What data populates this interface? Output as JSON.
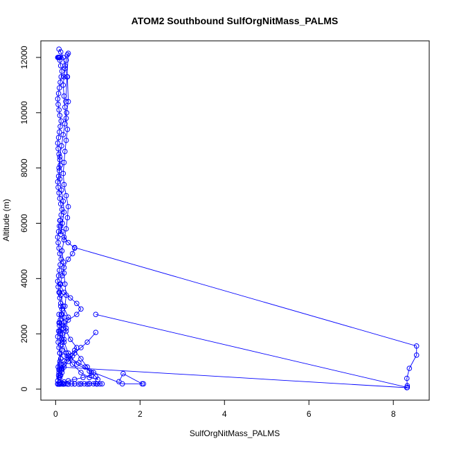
{
  "chart_data": {
    "type": "line",
    "title": "ATOM2 Southbound SulfOrgNitMass_PALMS",
    "xlabel": "SulfOrgNitMass_PALMS",
    "ylabel": "Altitude (m)",
    "xlim": [
      -0.35,
      8.85
    ],
    "ylim": [
      -400,
      12600
    ],
    "x_ticks": [
      0,
      2,
      4,
      6,
      8
    ],
    "y_ticks": [
      0,
      2000,
      4000,
      6000,
      8000,
      10000,
      12000
    ],
    "x_tick_labels": [
      "0",
      "2",
      "4",
      "6",
      "8"
    ],
    "y_tick_labels": [
      "0",
      "2000",
      "4000",
      "6000",
      "8000",
      "10000",
      "12000"
    ],
    "grid": false,
    "color": "#0000ff",
    "marker": "open-circle",
    "series": [
      {
        "x": [
          0.05,
          0.08,
          0.1,
          0.12,
          0.15,
          0.18,
          0.2,
          0.25,
          0.3,
          0.38,
          0.45,
          0.55,
          0.6,
          0.68,
          0.75,
          0.8,
          0.9,
          0.98,
          1.05,
          1.1,
          0.95,
          0.8,
          0.6,
          0.45,
          0.3,
          0.2,
          0.12,
          0.08
        ],
        "y": [
          180,
          180,
          180,
          185,
          190,
          180,
          185,
          190,
          180,
          185,
          190,
          180,
          185,
          190,
          180,
          185,
          190,
          180,
          185,
          190,
          200,
          195,
          190,
          185,
          180,
          185,
          190,
          180
        ]
      },
      {
        "x": [
          1.5,
          1.6,
          2.05,
          2.08,
          1.58,
          0.9,
          0.5,
          0.3,
          0.2,
          0.15,
          0.1,
          0.08
        ],
        "y": [
          270,
          560,
          190,
          190,
          190,
          600,
          900,
          1300,
          1700,
          2000,
          2400,
          2700
        ]
      },
      {
        "x": [
          0.1,
          0.12,
          0.15,
          0.2,
          0.3,
          0.45,
          0.6,
          0.75,
          0.85,
          0.95,
          1.0,
          0.8,
          0.6,
          0.4,
          0.25,
          0.15,
          0.1
        ],
        "y": [
          250,
          500,
          750,
          1000,
          1200,
          1400,
          1100,
          800,
          600,
          450,
          350,
          420,
          600,
          900,
          1300,
          1700,
          2100
        ]
      },
      {
        "x": [
          0.08,
          0.1,
          0.15,
          0.2,
          0.25,
          0.3,
          0.18,
          0.12,
          0.1,
          0.2,
          0.35,
          0.5,
          0.6,
          0.5,
          0.3,
          0.18,
          0.1
        ],
        "y": [
          700,
          1000,
          1400,
          1800,
          2200,
          2600,
          3000,
          3400,
          3800,
          3500,
          3300,
          3100,
          2900,
          2700,
          2500,
          2300,
          2100
        ]
      },
      {
        "x": [
          0.95,
          0.75,
          0.6,
          0.45,
          0.3,
          0.2,
          0.15,
          0.1
        ],
        "y": [
          2050,
          1700,
          1500,
          1300,
          1100,
          900,
          700,
          500
        ]
      },
      {
        "x": [
          0.1,
          0.12,
          0.15,
          0.2,
          0.3,
          0.4,
          0.45,
          0.3,
          0.2,
          0.15,
          0.12,
          0.1
        ],
        "y": [
          3500,
          3800,
          4100,
          4400,
          4700,
          4900,
          5100,
          5300,
          5500,
          5700,
          5900,
          6100
        ]
      },
      {
        "x": [
          0.45,
          8.55,
          8.55,
          8.38,
          8.32,
          8.33,
          8.32,
          0.1,
          0.08
        ],
        "y": [
          5120,
          1560,
          1230,
          750,
          390,
          120,
          50,
          800,
          600
        ]
      },
      {
        "x": [
          0.95,
          8.33
        ],
        "y": [
          2700,
          60
        ]
      },
      {
        "x": [
          0.05,
          0.07,
          0.09,
          0.1,
          0.12,
          0.1,
          0.08,
          0.06,
          0.05,
          0.07,
          0.09,
          0.11,
          0.13,
          0.15,
          0.12,
          0.1,
          0.08,
          0.06,
          0.05,
          0.07,
          0.09,
          0.11,
          0.13,
          0.1,
          0.08,
          0.06,
          0.05,
          0.07,
          0.09,
          0.11,
          0.13,
          0.15,
          0.12,
          0.1,
          0.08,
          0.06,
          0.05,
          0.07,
          0.09,
          0.11,
          0.1,
          0.08,
          0.06,
          0.05,
          0.07,
          0.09,
          0.11,
          0.13,
          0.1,
          0.08,
          0.06,
          0.05,
          0.07,
          0.09,
          0.11,
          0.13,
          0.15,
          0.12,
          0.1,
          0.08,
          0.06,
          0.05,
          0.07,
          0.09,
          0.11
        ],
        "y": [
          300,
          500,
          700,
          900,
          1100,
          1300,
          1500,
          1700,
          1900,
          2100,
          2300,
          2500,
          2700,
          2900,
          3100,
          3300,
          3500,
          3700,
          3900,
          4100,
          4300,
          4500,
          4700,
          4900,
          5100,
          5300,
          5500,
          5700,
          5900,
          6100,
          6300,
          6500,
          6700,
          6900,
          7100,
          7300,
          7500,
          7700,
          7900,
          8100,
          8300,
          8500,
          8700,
          8900,
          9100,
          9300,
          9500,
          9700,
          9900,
          10100,
          10300,
          10500,
          10700,
          10900,
          11100,
          11300,
          11500,
          11700,
          11900,
          12000,
          12000,
          12000,
          12000,
          12000,
          12000
        ]
      },
      {
        "x": [
          0.15,
          0.18,
          0.2,
          0.22,
          0.25,
          0.22,
          0.2,
          0.18,
          0.15,
          0.2,
          0.25,
          0.28,
          0.3,
          0.25,
          0.2,
          0.18,
          0.2,
          0.22,
          0.25,
          0.28,
          0.25,
          0.22,
          0.2,
          0.18,
          0.2,
          0.22,
          0.25,
          0.28,
          0.3,
          0.27,
          0.24
        ],
        "y": [
          1800,
          2200,
          2600,
          3000,
          3400,
          3800,
          4200,
          4600,
          5000,
          5400,
          5800,
          6200,
          6600,
          7000,
          7400,
          7800,
          8200,
          8600,
          9000,
          9400,
          9800,
          10200,
          10600,
          11000,
          11300,
          11600,
          11900,
          12100,
          12150,
          11300,
          10400
        ]
      },
      {
        "x": [
          0.08,
          0.12,
          0.18,
          0.22,
          0.28,
          0.3,
          0.26,
          0.22,
          0.18,
          0.14,
          0.1,
          0.08,
          0.1,
          0.14,
          0.18,
          0.2,
          0.16,
          0.12
        ],
        "y": [
          12300,
          12200,
          12000,
          11700,
          11300,
          10400,
          10000,
          9600,
          9200,
          8800,
          8400,
          8000,
          7600,
          7200,
          6800,
          6400,
          6000,
          5600
        ]
      },
      {
        "x": [
          0.12,
          0.15,
          0.2,
          0.25,
          0.35,
          0.5,
          0.4,
          0.3,
          0.2,
          0.15,
          0.1
        ],
        "y": [
          3000,
          2700,
          2400,
          2100,
          1800,
          1500,
          1200,
          1000,
          800,
          600,
          400
        ]
      },
      {
        "x": [
          0.05,
          0.08,
          0.06,
          0.1,
          0.12,
          0.1,
          0.08
        ],
        "y": [
          190,
          420,
          800,
          1300,
          1600,
          2000,
          2400
        ]
      },
      {
        "x": [
          0.2,
          0.35,
          0.55,
          0.7,
          0.8,
          0.85,
          0.65,
          0.45,
          0.3,
          0.2,
          0.15
        ],
        "y": [
          1200,
          1100,
          950,
          800,
          650,
          500,
          420,
          350,
          300,
          260,
          220
        ]
      }
    ]
  }
}
